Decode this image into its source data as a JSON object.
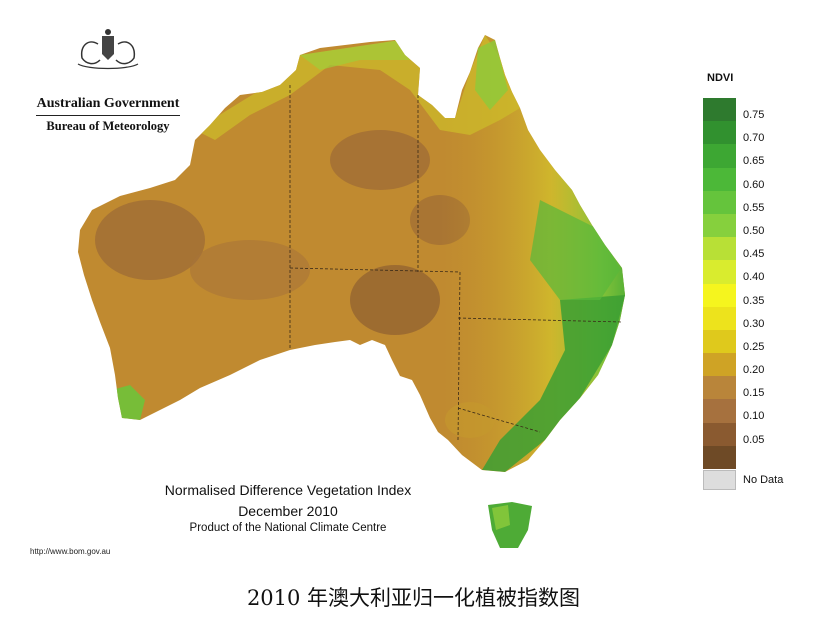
{
  "logo": {
    "org": "Australian Government",
    "dept": "Bureau of Meteorology"
  },
  "map": {
    "title": "Normalised Difference Vegetation Index",
    "period": "December 2010",
    "credit": "Product of the National Climate Centre",
    "url": "http://www.bom.gov.au"
  },
  "legend": {
    "title": "NDVI",
    "items": [
      {
        "label": "0.75",
        "color": "#2e7a2e"
      },
      {
        "label": "0.70",
        "color": "#31912f"
      },
      {
        "label": "0.65",
        "color": "#3da733"
      },
      {
        "label": "0.60",
        "color": "#4cb838"
      },
      {
        "label": "0.55",
        "color": "#65c43c"
      },
      {
        "label": "0.50",
        "color": "#86d03d"
      },
      {
        "label": "0.45",
        "color": "#b8e036"
      },
      {
        "label": "0.40",
        "color": "#d9ec2e"
      },
      {
        "label": "0.35",
        "color": "#f5f51e"
      },
      {
        "label": "0.30",
        "color": "#ede31c"
      },
      {
        "label": "0.25",
        "color": "#dfc91c"
      },
      {
        "label": "0.20",
        "color": "#cfa325"
      },
      {
        "label": "0.15",
        "color": "#b9853a"
      },
      {
        "label": "0.10",
        "color": "#a6713e"
      },
      {
        "label": "0.05",
        "color": "#8a5a30"
      },
      {
        "label": "",
        "color": "#6e4a26"
      }
    ],
    "nodata_label": "No Data"
  },
  "caption": "2010 年澳大利亚归一化植被指数图"
}
